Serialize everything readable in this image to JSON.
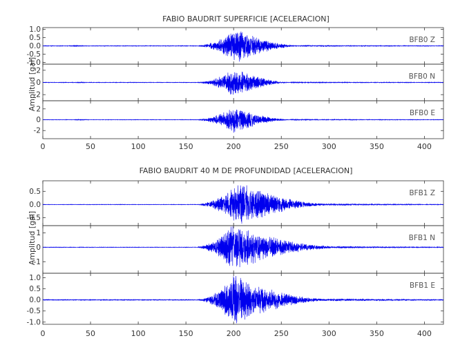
{
  "chart_data": [
    {
      "type": "line",
      "title": "FABIO BAUDRIT SUPERFICIE [ACELERACION]",
      "ylabel": "Amplitud [gal]",
      "xlabel": "",
      "xlim": [
        0,
        420
      ],
      "xticks": [
        "0",
        "50",
        "100",
        "150",
        "200",
        "250",
        "300",
        "350",
        "400"
      ],
      "panels": [
        {
          "name": "BFB0   Z",
          "ylim": [
            -1.1,
            1.1
          ],
          "yticks": [
            "1.0",
            "0.5",
            "0.0",
            "-0.5",
            "-1.0"
          ],
          "ytick_values": [
            1.0,
            0.5,
            0.0,
            -0.5,
            -1.0
          ],
          "envelope": {
            "quiet": 0.02,
            "pre": [
              [
                35,
                0.05
              ]
            ],
            "onset": 155,
            "peak_time": 202,
            "peak": 1.05,
            "decay_end": 270,
            "tail": 0.02
          }
        },
        {
          "name": "BFB0   N",
          "ylim": [
            -3,
            3
          ],
          "yticks": [
            "2",
            "0",
            "-2"
          ],
          "ytick_values": [
            2,
            0,
            -2
          ],
          "envelope": {
            "quiet": 0.05,
            "pre": [
              [
                40,
                0.08
              ]
            ],
            "onset": 155,
            "peak_time": 200,
            "peak": 2.4,
            "decay_end": 260,
            "tail": 0.05
          }
        },
        {
          "name": "BFB0   E",
          "ylim": [
            -3.5,
            3.5
          ],
          "yticks": [
            "2",
            "0",
            "-2"
          ],
          "ytick_values": [
            2,
            0,
            -2
          ],
          "envelope": {
            "quiet": 0.05,
            "pre": [
              [
                40,
                0.1
              ]
            ],
            "onset": 155,
            "peak_time": 200,
            "peak": 2.6,
            "decay_end": 260,
            "tail": 0.06
          }
        }
      ]
    },
    {
      "type": "line",
      "title": "FABIO BAUDRIT 40 M DE PROFUNDIDAD [ACELERACION]",
      "ylabel": "Amplitud [gal]",
      "xlabel": "",
      "xlim": [
        0,
        420
      ],
      "xticks": [
        "0",
        "50",
        "100",
        "150",
        "200",
        "250",
        "300",
        "350",
        "400"
      ],
      "panels": [
        {
          "name": "BFB1   Z",
          "ylim": [
            -0.8,
            0.9
          ],
          "yticks": [
            "0.5",
            "0.0",
            "-0.5"
          ],
          "ytick_values": [
            0.5,
            0.0,
            -0.5
          ],
          "envelope": {
            "quiet": 0.01,
            "pre": [],
            "onset": 155,
            "peak_time": 205,
            "peak": 0.85,
            "decay_end": 300,
            "tail": 0.03
          }
        },
        {
          "name": "BFB1   N",
          "ylim": [
            -1.8,
            1.5
          ],
          "yticks": [
            "1",
            "0",
            "-1"
          ],
          "ytick_values": [
            1,
            0,
            -1
          ],
          "envelope": {
            "quiet": 0.02,
            "pre": [],
            "onset": 155,
            "peak_time": 198,
            "peak": 1.6,
            "decay_end": 310,
            "tail": 0.06
          }
        },
        {
          "name": "BFB1   E",
          "ylim": [
            -1.1,
            1.2
          ],
          "yticks": [
            "1.0",
            "0.5",
            "0.0",
            "-0.5",
            "-1.0"
          ],
          "ytick_values": [
            1.0,
            0.5,
            0.0,
            -0.5,
            -1.0
          ],
          "envelope": {
            "quiet": 0.02,
            "pre": [],
            "onset": 155,
            "peak_time": 200,
            "peak": 1.1,
            "decay_end": 300,
            "tail": 0.04
          }
        }
      ]
    }
  ]
}
